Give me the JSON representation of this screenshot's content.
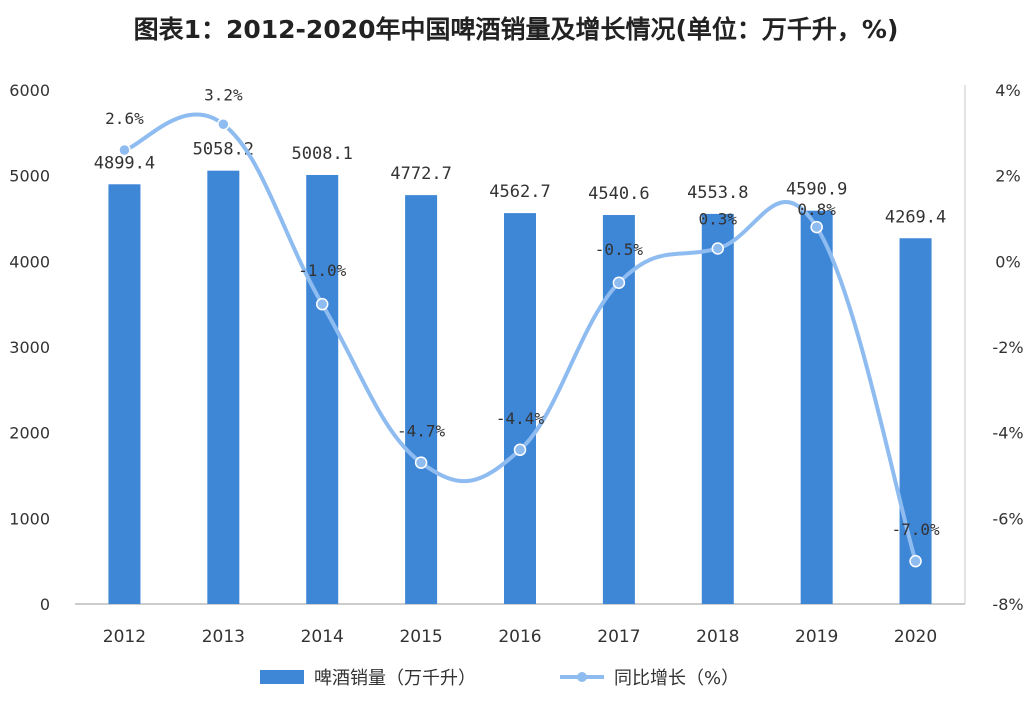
{
  "title": "图表1：2012-2020年中国啤酒销量及增长情况(单位：万千升，%)",
  "colors": {
    "bar": "#3e86d6",
    "line": "#8ebcf0",
    "axis": "#999999",
    "text": "#333333"
  },
  "chart_data": {
    "type": "bar",
    "title": "图表1：2012-2020年中国啤酒销量及增长情况(单位：万千升，%)",
    "categories": [
      "2012",
      "2013",
      "2014",
      "2015",
      "2016",
      "2017",
      "2018",
      "2019",
      "2020"
    ],
    "series": [
      {
        "name": "啤酒销量（万千升）",
        "type": "bar",
        "axis": "left",
        "values": [
          4899.4,
          5058.2,
          5008.1,
          4772.7,
          4562.7,
          4540.6,
          4553.8,
          4590.9,
          4269.4
        ],
        "labels": [
          "4899.4",
          "5058.2",
          "5008.1",
          "4772.7",
          "4562.7",
          "4540.6",
          "4553.8",
          "4590.9",
          "4269.4"
        ]
      },
      {
        "name": "同比增长（%）",
        "type": "line",
        "axis": "right",
        "smooth": true,
        "values": [
          2.6,
          3.2,
          -1.0,
          -4.7,
          -4.4,
          -0.5,
          0.3,
          0.8,
          -7.0
        ],
        "labels": [
          "2.6%",
          "3.2%",
          "-1.0%",
          "-4.7%",
          "-4.4%",
          "-0.5%",
          "0.3%",
          "0.8%",
          "-7.0%"
        ]
      }
    ],
    "y_left": {
      "min": 0,
      "max": 6000,
      "ticks": [
        "0",
        "1000",
        "2000",
        "3000",
        "4000",
        "5000",
        "6000"
      ]
    },
    "y_right": {
      "min": -8,
      "max": 4,
      "ticks": [
        "-8%",
        "-6%",
        "-4%",
        "-2%",
        "0%",
        "2%",
        "4%"
      ]
    },
    "grid": false,
    "legend": "bottom-center"
  }
}
